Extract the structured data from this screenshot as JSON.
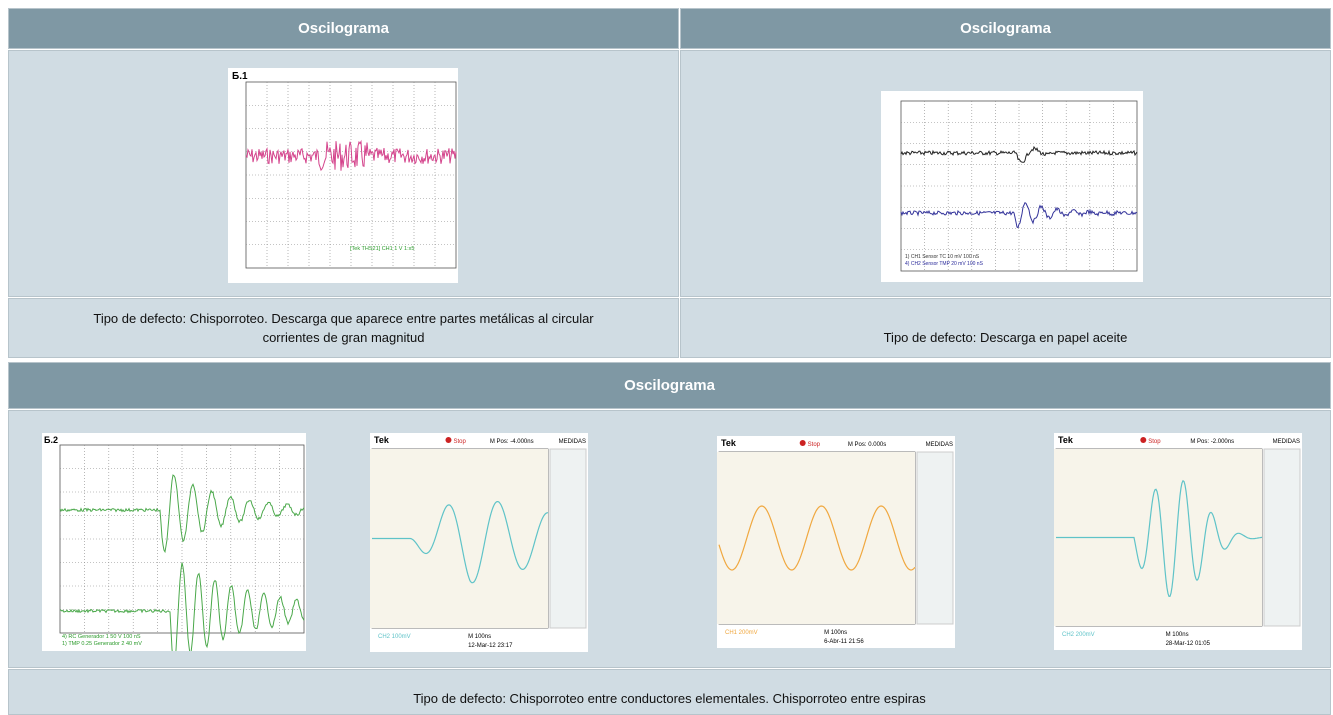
{
  "top": {
    "headers": [
      "Oscilograma",
      "Oscilograma"
    ],
    "images": [
      {
        "label": "Б.1",
        "legend": "[Tek THS21] CH1 1 V 1:x5"
      },
      {
        "legend": [
          "1) CH1 Sensor TC 10 mV 100 nS",
          "4) CH2 Sensor TMP 20 mV 100 nS"
        ]
      }
    ],
    "captions": [
      "Tipo de defecto: Chisporroteo. Descarga que aparece entre partes metálicas al circular corrientes de gran magnitud",
      "Tipo de defecto: Descarga en papel aceite"
    ]
  },
  "bottom": {
    "header": "Oscilograma",
    "images": [
      {
        "label": "Б.2",
        "legend": [
          "4) RC Generador 1 50 V 100 nS",
          "1) TMP 0.25 Generador 2 40 mV"
        ]
      },
      {
        "brand": "Tek",
        "state": "Stop",
        "position": "M Pos: -4.000ns",
        "menu": "MEDIDAS",
        "scale": "CH2 100mV",
        "time": "M 100ns",
        "date": "12-Mar-12 23:17"
      },
      {
        "brand": "Tek",
        "state": "Stop",
        "position": "M Pos: 0.000s",
        "menu": "MEDIDAS",
        "scale": "CH1 200mV",
        "time": "M 100ns",
        "date": "6-Abr-11 21:56"
      },
      {
        "brand": "Tek",
        "state": "Stop",
        "position": "M Pos: -2.000ns",
        "menu": "MEDIDAS",
        "scale": "CH2 200mV",
        "time": "M 100ns",
        "date": "28-Mar-12 01:05"
      }
    ],
    "caption": "Tipo de defecto:  Chisporroteo entre conductores elementales. Chisporroteo entre espiras"
  }
}
